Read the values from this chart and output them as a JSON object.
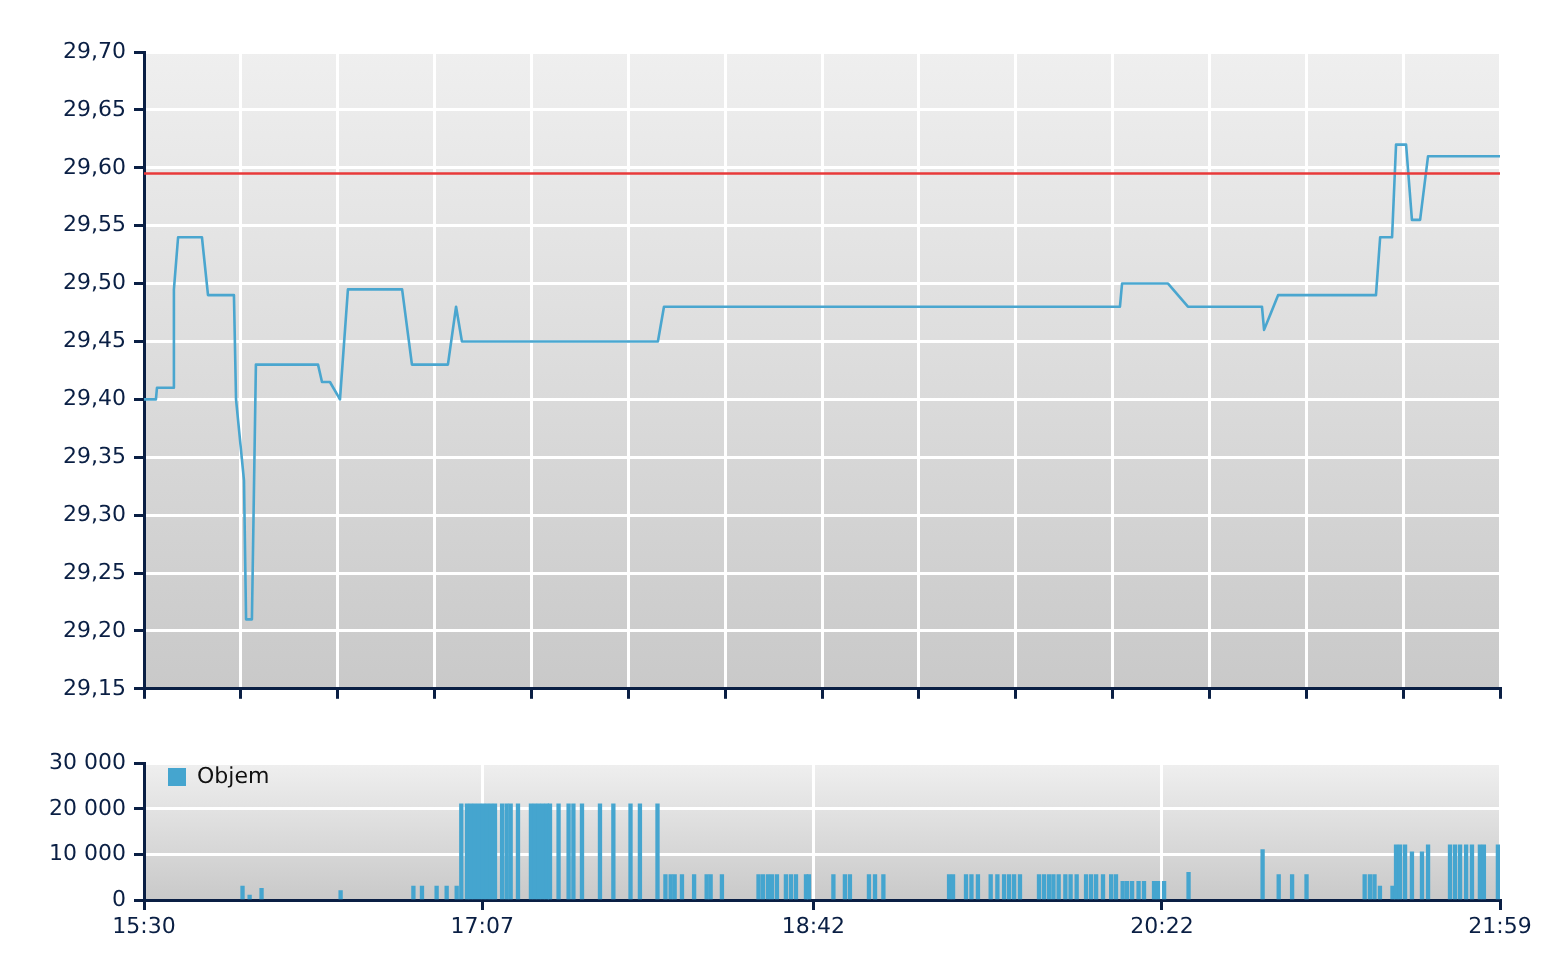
{
  "chart_data": [
    {
      "type": "line",
      "color": "#4aa6cf",
      "line_style": "solid",
      "marker": "none",
      "grid": true,
      "tick_labels": "y",
      "x": [
        15.5,
        15.557,
        15.562,
        15.634,
        15.643,
        15.663,
        15.777,
        15.806,
        15.93,
        15.94,
        15.978,
        15.988,
        16.016,
        16.035,
        16.332,
        16.351,
        16.389,
        16.437,
        16.475,
        16.734,
        16.781,
        16.953,
        16.992,
        17.02,
        17.957,
        17.986,
        20.166,
        20.176,
        20.396,
        20.491,
        20.845,
        20.855,
        20.922,
        21.39,
        21.41,
        21.467,
        21.486,
        21.534,
        21.562,
        21.601,
        21.639,
        21.983
      ],
      "values": [
        29.4,
        29.4,
        29.41,
        29.41,
        29.495,
        29.54,
        29.54,
        29.49,
        29.49,
        29.4,
        29.33,
        29.21,
        29.21,
        29.43,
        29.43,
        29.415,
        29.415,
        29.4,
        29.495,
        29.495,
        29.43,
        29.43,
        29.48,
        29.45,
        29.45,
        29.48,
        29.48,
        29.5,
        29.5,
        29.48,
        29.48,
        29.46,
        29.49,
        29.49,
        29.54,
        29.54,
        29.62,
        29.62,
        29.555,
        29.555,
        29.61,
        29.61
      ],
      "xlim": [
        15.5,
        21.983
      ],
      "xticks": [
        {
          "value": 15.5,
          "label": null
        },
        {
          "value": 15.963,
          "label": null
        },
        {
          "value": 16.426,
          "label": null
        },
        {
          "value": 16.889,
          "label": null
        },
        {
          "value": 17.352,
          "label": null
        },
        {
          "value": 17.815,
          "label": null
        },
        {
          "value": 18.279,
          "label": null
        },
        {
          "value": 18.742,
          "label": null
        },
        {
          "value": 19.205,
          "label": null
        },
        {
          "value": 19.668,
          "label": null
        },
        {
          "value": 20.131,
          "label": null
        },
        {
          "value": 20.594,
          "label": null
        },
        {
          "value": 21.057,
          "label": null
        },
        {
          "value": 21.52,
          "label": null
        },
        {
          "value": 21.983,
          "label": null
        }
      ],
      "ylim": [
        29.15,
        29.7
      ],
      "yticks": [
        {
          "value": 29.15,
          "label": "29,15"
        },
        {
          "value": 29.2,
          "label": "29,20"
        },
        {
          "value": 29.25,
          "label": "29,25"
        },
        {
          "value": 29.3,
          "label": "29,30"
        },
        {
          "value": 29.35,
          "label": "29,35"
        },
        {
          "value": 29.4,
          "label": "29,40"
        },
        {
          "value": 29.45,
          "label": "29,45"
        },
        {
          "value": 29.5,
          "label": "29,50"
        },
        {
          "value": 29.55,
          "label": "29,55"
        },
        {
          "value": 29.6,
          "label": "29,60"
        },
        {
          "value": 29.65,
          "label": "29,65"
        },
        {
          "value": 29.7,
          "label": "29,70"
        }
      ],
      "ref_lines": [
        {
          "axis": "y",
          "value": 29.595,
          "color": "#e83a3a"
        }
      ]
    },
    {
      "type": "bar",
      "grid": true,
      "legend": "top left",
      "x": [
        15.971,
        16.005,
        16.062,
        16.44,
        16.788,
        16.829,
        16.899,
        16.947,
        16.995,
        17.017,
        17.044,
        17.063,
        17.082,
        17.102,
        17.121,
        17.14,
        17.159,
        17.178,
        17.212,
        17.234,
        17.253,
        17.288,
        17.35,
        17.369,
        17.388,
        17.407,
        17.426,
        17.441,
        17.482,
        17.53,
        17.553,
        17.594,
        17.68,
        17.744,
        17.826,
        17.871,
        17.955,
        17.993,
        18.018,
        18.037,
        18.072,
        18.13,
        18.19,
        18.209,
        18.263,
        18.438,
        18.459,
        18.483,
        18.502,
        18.526,
        18.569,
        18.593,
        18.617,
        18.665,
        18.679,
        18.796,
        18.851,
        18.875,
        18.966,
        18.995,
        19.035,
        19.349,
        19.368,
        19.43,
        19.456,
        19.487,
        19.548,
        19.58,
        19.612,
        19.636,
        19.66,
        19.688,
        19.779,
        19.803,
        19.827,
        19.848,
        19.873,
        19.905,
        19.93,
        19.959,
        20.004,
        20.028,
        20.052,
        20.085,
        20.124,
        20.147,
        20.179,
        20.2,
        20.224,
        20.255,
        20.281,
        20.329,
        20.348,
        20.377,
        20.494,
        20.848,
        20.925,
        20.989,
        21.058,
        21.336,
        21.361,
        21.383,
        21.409,
        21.469,
        21.486,
        21.505,
        21.529,
        21.562,
        21.61,
        21.639,
        21.744,
        21.768,
        21.792,
        21.821,
        21.849,
        21.887,
        21.906,
        21.973
      ],
      "series": [
        {
          "name": "Objem",
          "color": "#45a5cf",
          "values": [
            3000,
            1000,
            2500,
            2000,
            3000,
            3000,
            3000,
            3000,
            3000,
            21000,
            21000,
            21000,
            21000,
            21000,
            21000,
            21000,
            21000,
            21000,
            21000,
            21000,
            21000,
            21000,
            21000,
            21000,
            21000,
            21000,
            21000,
            21000,
            21000,
            21000,
            21000,
            21000,
            21000,
            21000,
            21000,
            21000,
            21000,
            5500,
            5500,
            5500,
            5500,
            5500,
            5500,
            5500,
            5500,
            5500,
            5500,
            5500,
            5500,
            5500,
            5500,
            5500,
            5500,
            5500,
            5500,
            5500,
            5500,
            5500,
            5500,
            5500,
            5500,
            5500,
            5500,
            5500,
            5500,
            5500,
            5500,
            5500,
            5500,
            5500,
            5500,
            5500,
            5500,
            5500,
            5500,
            5500,
            5500,
            5500,
            5500,
            5500,
            5500,
            5500,
            5500,
            5500,
            5500,
            5500,
            4000,
            4000,
            4000,
            4000,
            4000,
            4000,
            4000,
            4000,
            6000,
            11000,
            5500,
            5500,
            5500,
            5500,
            5500,
            5500,
            3000,
            3000,
            12000,
            12000,
            12000,
            10500,
            10500,
            12000,
            12000,
            12000,
            12000,
            12000,
            12000,
            12000,
            12000,
            12000
          ]
        }
      ],
      "xlim": [
        15.5,
        21.983
      ],
      "xticks": [
        {
          "value": 15.5,
          "label": "15:30"
        },
        {
          "value": 17.117,
          "label": "17:07"
        },
        {
          "value": 18.7,
          "label": "18:42"
        },
        {
          "value": 20.367,
          "label": "20:22"
        },
        {
          "value": 21.983,
          "label": "21:59"
        }
      ],
      "ylim": [
        0,
        30000
      ],
      "yticks": [
        {
          "value": 0,
          "label": "0"
        },
        {
          "value": 10000,
          "label": "10 000"
        },
        {
          "value": 20000,
          "label": "20 000"
        },
        {
          "value": 30000,
          "label": "30 000"
        }
      ]
    }
  ]
}
